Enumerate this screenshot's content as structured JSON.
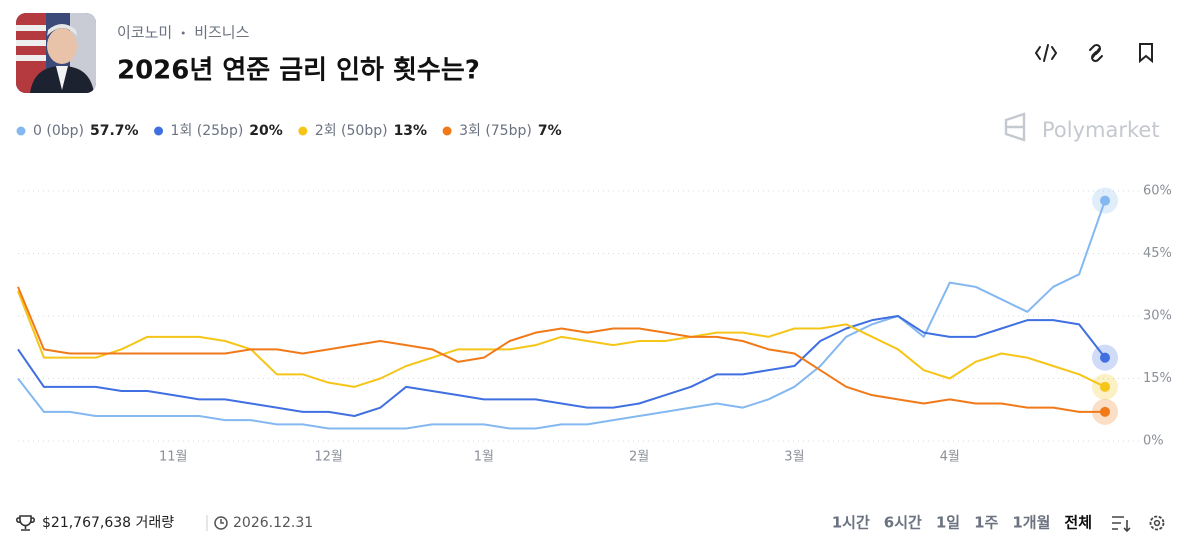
{
  "header": {
    "breadcrumb": [
      "이코노미",
      "비즈니스"
    ],
    "title": "2026년 연준 금리 인하 횟수는?",
    "brand": "Polymarket"
  },
  "chart_data": {
    "type": "line",
    "categories": [
      null,
      null,
      null,
      null,
      null,
      null,
      "11월",
      null,
      null,
      null,
      null,
      null,
      "12월",
      null,
      null,
      null,
      null,
      null,
      "1월",
      null,
      null,
      null,
      null,
      null,
      "2월",
      null,
      null,
      null,
      null,
      null,
      "3월",
      null,
      null,
      null,
      null,
      null,
      "4월",
      null,
      null,
      null,
      null,
      null,
      null
    ],
    "series": [
      {
        "name": "0 (0bp)",
        "current_label": "57.7%",
        "color": "#84b8f0",
        "values": [
          15,
          7,
          7,
          6,
          6,
          6,
          6,
          6,
          5,
          5,
          4,
          4,
          3,
          3,
          3,
          3,
          4,
          4,
          4,
          3,
          3,
          4,
          4,
          5,
          6,
          7,
          8,
          9,
          8,
          10,
          13,
          18,
          25,
          28,
          30,
          25,
          38,
          37,
          34,
          31,
          37,
          40,
          57.7
        ]
      },
      {
        "name": "1회 (25bp)",
        "current_label": "20%",
        "color": "#3f6fe0",
        "values": [
          22,
          13,
          13,
          13,
          12,
          12,
          11,
          10,
          10,
          9,
          8,
          7,
          7,
          6,
          8,
          13,
          12,
          11,
          10,
          10,
          10,
          9,
          8,
          8,
          9,
          11,
          13,
          16,
          16,
          17,
          18,
          24,
          27,
          29,
          30,
          26,
          25,
          25,
          27,
          29,
          29,
          28,
          20
        ]
      },
      {
        "name": "2회 (50bp)",
        "current_label": "13%",
        "color": "#f5c518",
        "values": [
          36,
          20,
          20,
          20,
          22,
          25,
          25,
          25,
          24,
          22,
          16,
          16,
          14,
          13,
          15,
          18,
          20,
          22,
          22,
          22,
          23,
          25,
          24,
          23,
          24,
          24,
          25,
          26,
          26,
          25,
          27,
          27,
          28,
          25,
          22,
          17,
          15,
          19,
          21,
          20,
          18,
          16,
          13
        ]
      },
      {
        "name": "3회 (75bp)",
        "current_label": "7%",
        "color": "#f07a1a",
        "values": [
          37,
          22,
          21,
          21,
          21,
          21,
          21,
          21,
          21,
          22,
          22,
          21,
          22,
          23,
          24,
          23,
          22,
          19,
          20,
          24,
          26,
          27,
          26,
          27,
          27,
          26,
          25,
          25,
          24,
          22,
          21,
          17,
          13,
          11,
          10,
          9,
          10,
          9,
          9,
          8,
          8,
          7,
          7
        ]
      }
    ],
    "ylim": [
      0,
      60
    ],
    "yticks": [
      {
        "value": 0,
        "label": "0%"
      },
      {
        "value": 15,
        "label": "15%"
      },
      {
        "value": 30,
        "label": "30%"
      },
      {
        "value": 45,
        "label": "45%"
      },
      {
        "value": 60,
        "label": "60%"
      }
    ],
    "grid": true
  },
  "footer": {
    "volume": "$21,767,638 거래량",
    "end_date": "2026.12.31",
    "ranges": [
      "1시간",
      "6시간",
      "1일",
      "1주",
      "1개월",
      "전체"
    ],
    "active_range": "전체"
  }
}
